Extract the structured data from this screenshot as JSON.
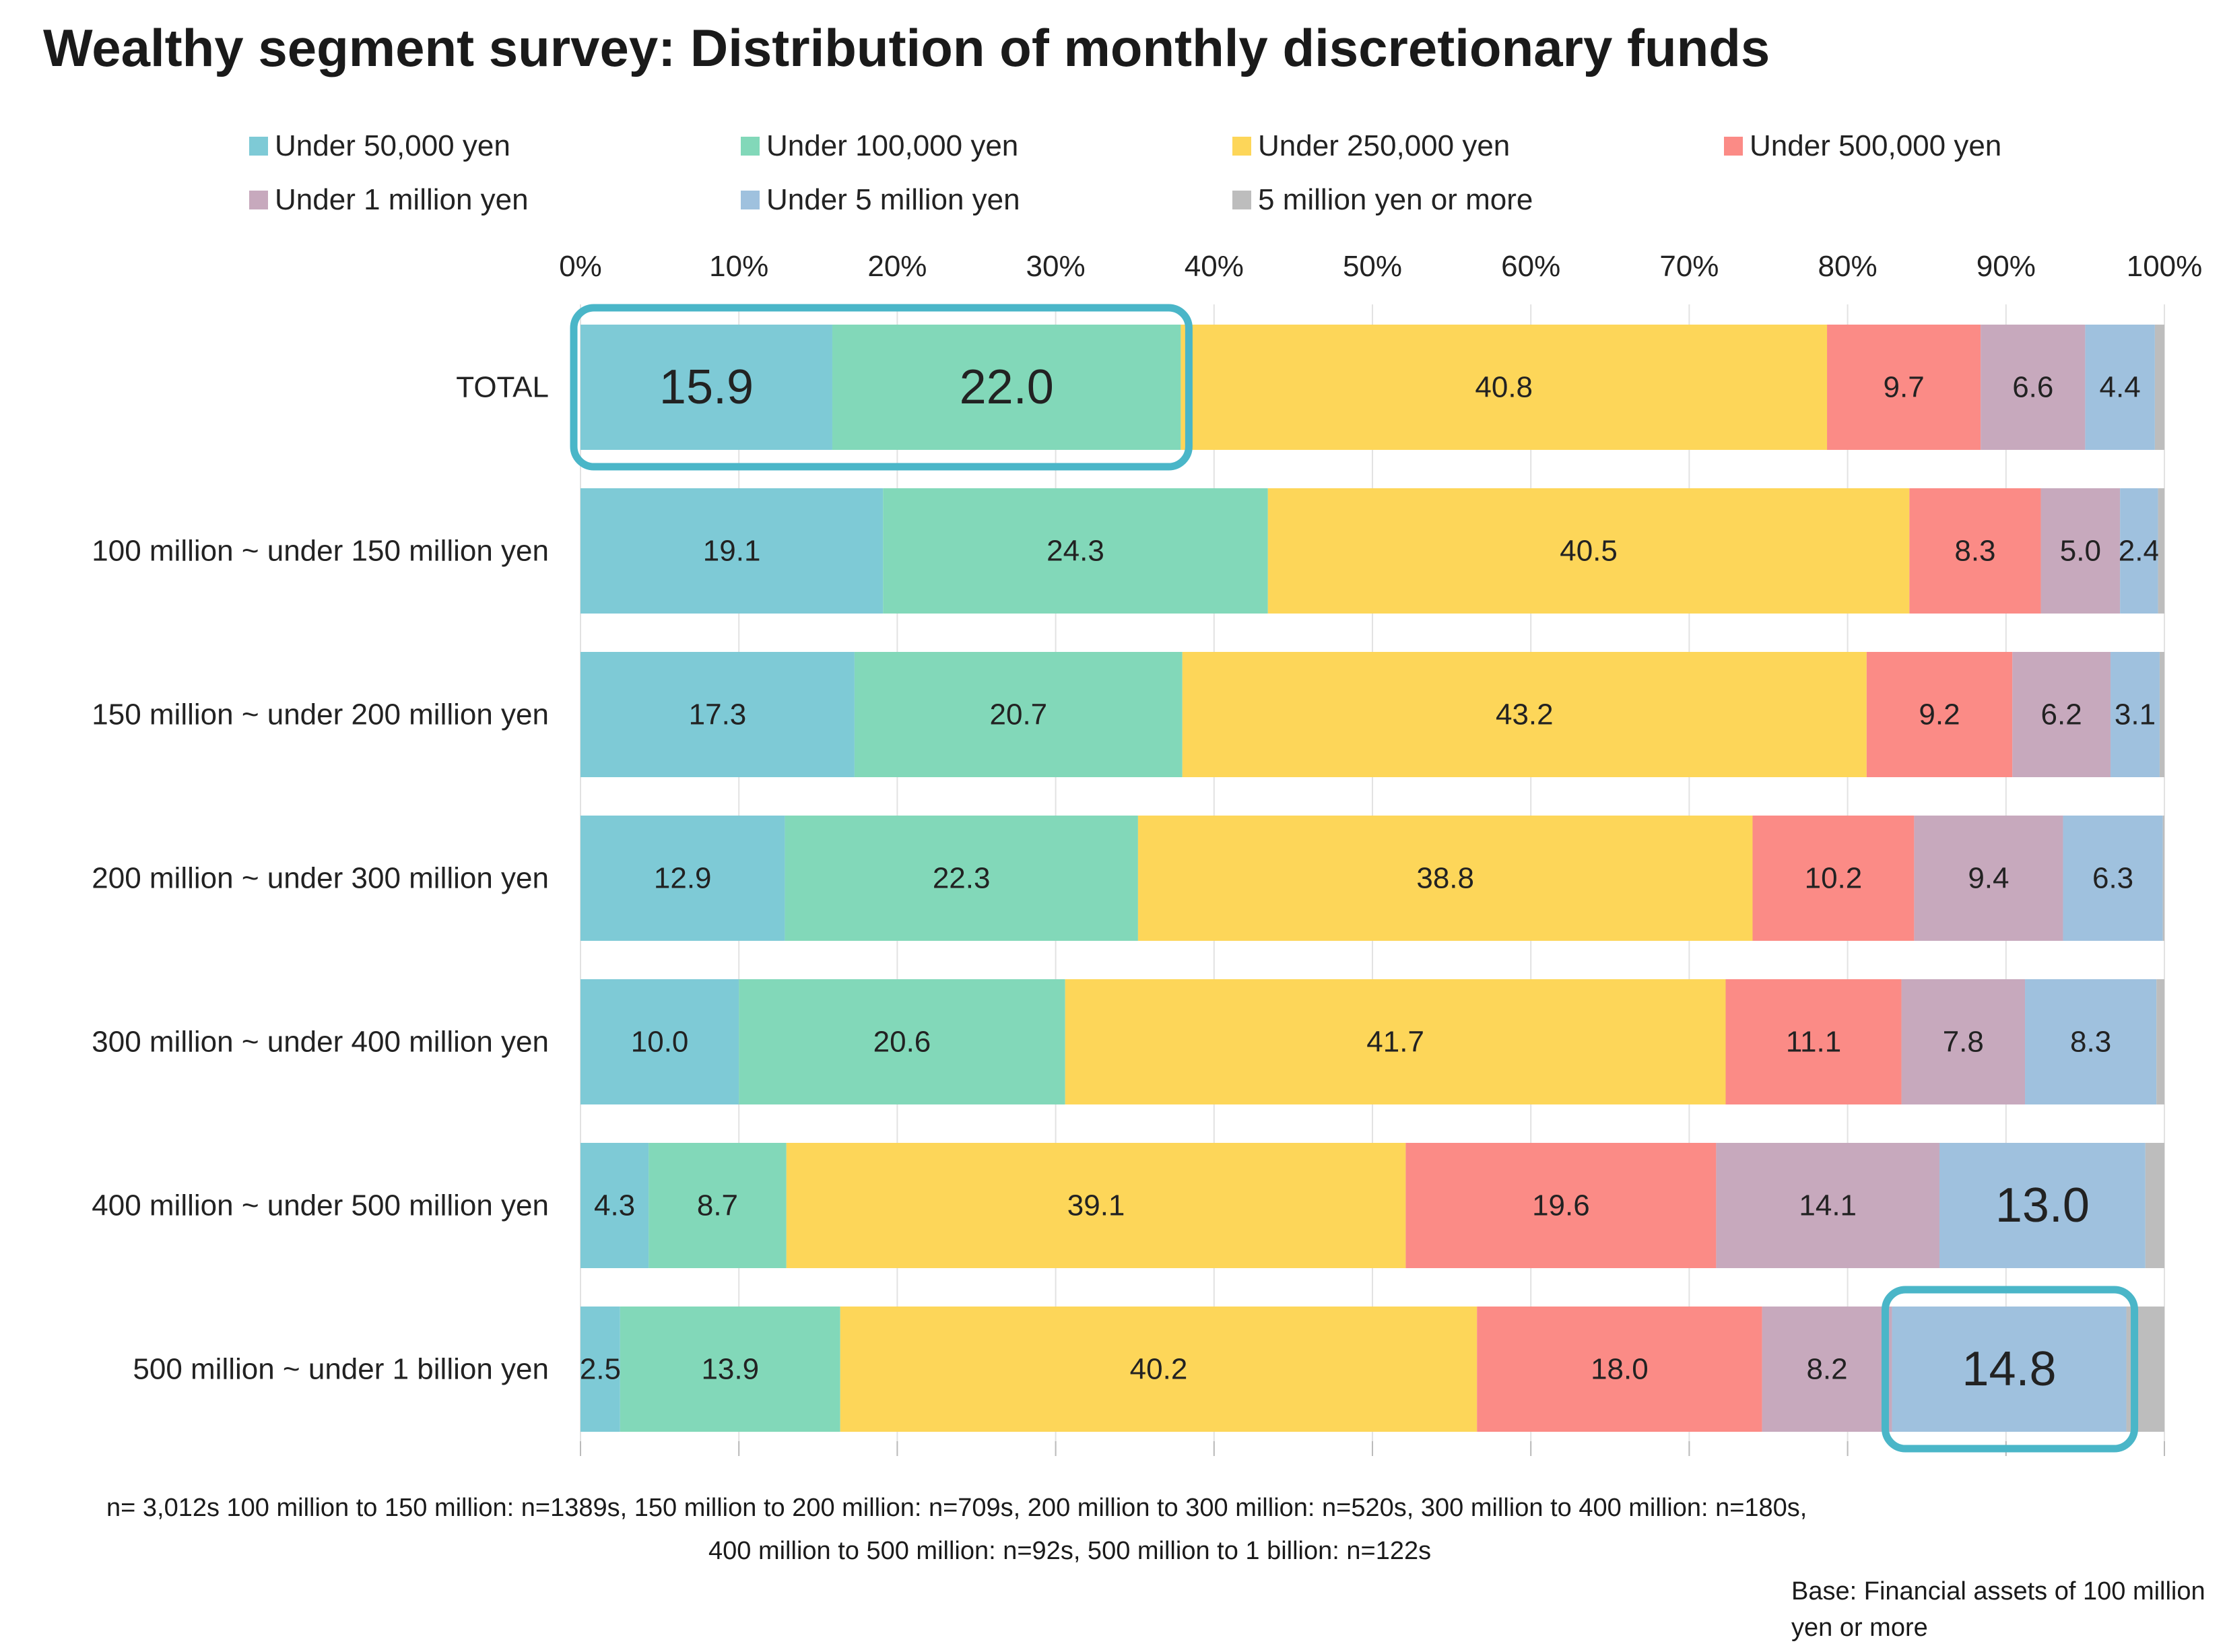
{
  "chart_data": {
    "type": "bar",
    "orientation": "horizontal",
    "stacked": "percent",
    "title": "Wealthy segment survey: Distribution of monthly discretionary funds",
    "xlabel": "",
    "ylabel": "",
    "xlim": [
      0,
      100
    ],
    "x_ticks": [
      "0%",
      "10%",
      "20%",
      "30%",
      "40%",
      "50%",
      "60%",
      "70%",
      "80%",
      "90%",
      "100%"
    ],
    "grid": true,
    "legend_position": "top",
    "categories": [
      "TOTAL",
      "100 million ~ under 150 million yen",
      "150 million ~ under 200 million yen",
      "200 million ~ under 300 million yen",
      "300 million ~ under 400 million yen",
      "400 million ~ under 500 million yen",
      "500 million ~ under 1 billion yen"
    ],
    "series": [
      {
        "name": "Under 50,000 yen",
        "color": "#7ecad6",
        "values": [
          15.9,
          19.1,
          17.3,
          12.9,
          10.0,
          4.3,
          2.5
        ],
        "labels": [
          "15.9",
          "19.1",
          "17.3",
          "12.9",
          "10.0",
          "4.3",
          "2.5"
        ]
      },
      {
        "name": "Under 100,000 yen",
        "color": "#82d8b9",
        "values": [
          22.0,
          24.3,
          20.7,
          22.3,
          20.6,
          8.7,
          13.9
        ],
        "labels": [
          "22.0",
          "24.3",
          "20.7",
          "22.3",
          "20.6",
          "8.7",
          "13.9"
        ]
      },
      {
        "name": "Under 250,000 yen",
        "color": "#fdd659",
        "values": [
          40.8,
          40.5,
          43.2,
          38.8,
          41.7,
          39.1,
          40.2
        ],
        "labels": [
          "40.8",
          "40.5",
          "43.2",
          "38.8",
          "41.7",
          "39.1",
          "40.2"
        ]
      },
      {
        "name": "Under 500,000 yen",
        "color": "#fb8b86",
        "values": [
          9.7,
          8.3,
          9.2,
          10.2,
          11.1,
          19.6,
          18.0
        ],
        "labels": [
          "9.7",
          "8.3",
          "9.2",
          "10.2",
          "11.1",
          "19.6",
          "18.0"
        ]
      },
      {
        "name": "Under 1 million yen",
        "color": "#c7a9bd",
        "values": [
          6.6,
          5.0,
          6.2,
          9.4,
          7.8,
          14.1,
          8.2
        ],
        "labels": [
          "6.6",
          "5.0",
          "6.2",
          "9.4",
          "7.8",
          "14.1",
          "8.2"
        ]
      },
      {
        "name": "Under 5 million yen",
        "color": "#9fc1de",
        "values": [
          4.4,
          2.4,
          3.1,
          6.3,
          8.3,
          13.0,
          14.8
        ],
        "labels": [
          "4.4",
          "2.4",
          "3.1",
          "6.3",
          "8.3",
          "13.0",
          "14.8"
        ]
      },
      {
        "name": "5 million yen or more",
        "color": "#bdbdbd",
        "values": [
          0.6,
          0.4,
          0.3,
          0.1,
          0.5,
          1.2,
          2.4
        ],
        "labels": [
          "",
          "",
          "",
          "",
          "",
          "",
          ""
        ]
      }
    ],
    "emphasized_labels": [
      {
        "category": 0,
        "series": 0
      },
      {
        "category": 0,
        "series": 1
      },
      {
        "category": 5,
        "series": 5
      },
      {
        "category": 6,
        "series": 5
      }
    ],
    "highlight_boxes": [
      {
        "category": 0,
        "series_from": 0,
        "series_to": 1
      },
      {
        "category": 6,
        "series_from": 5,
        "series_to": 5
      }
    ],
    "highlight_color": "#4ab6c8"
  },
  "footnote_line1": "n= 3,012s    100 million to 150 million: n=1389s, 150 million to 200 million: n=709s, 200 million to 300 million: n=520s, 300 million to 400 million: n=180s,",
  "footnote_line2": "400 million to 500 million: n=92s, 500 million to 1 billion: n=122s",
  "base_note": "Base: Financial assets of 100 million yen or more"
}
